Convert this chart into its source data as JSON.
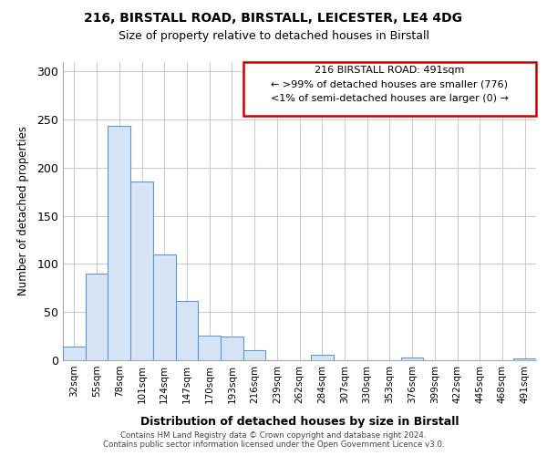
{
  "title_line1": "216, BIRSTALL ROAD, BIRSTALL, LEICESTER, LE4 4DG",
  "title_line2": "Size of property relative to detached houses in Birstall",
  "xlabel": "Distribution of detached houses by size in Birstall",
  "ylabel": "Number of detached properties",
  "categories": [
    "32sqm",
    "55sqm",
    "78sqm",
    "101sqm",
    "124sqm",
    "147sqm",
    "170sqm",
    "193sqm",
    "216sqm",
    "239sqm",
    "262sqm",
    "284sqm",
    "307sqm",
    "330sqm",
    "353sqm",
    "376sqm",
    "399sqm",
    "422sqm",
    "445sqm",
    "468sqm",
    "491sqm"
  ],
  "values": [
    14,
    90,
    243,
    186,
    110,
    62,
    26,
    25,
    10,
    0,
    0,
    6,
    0,
    0,
    0,
    3,
    0,
    0,
    0,
    0,
    2
  ],
  "bar_facecolor": "#d6e4f5",
  "bar_edgecolor": "#5b9bd5",
  "annotation_text_line1": "216 BIRSTALL ROAD: 491sqm",
  "annotation_text_line2": "← >99% of detached houses are smaller (776)",
  "annotation_text_line3": "<1% of semi-detached houses are larger (0) →",
  "footer_line1": "Contains HM Land Registry data © Crown copyright and database right 2024.",
  "footer_line2": "Contains public sector information licensed under the Open Government Licence v3.0.",
  "ylim": [
    0,
    310
  ],
  "yticks": [
    0,
    50,
    100,
    150,
    200,
    250,
    300
  ],
  "bg_color": "#ffffff",
  "grid_color": "#cccccc",
  "annotation_box_color": "#ffffff",
  "annotation_border_color": "#cc0000"
}
